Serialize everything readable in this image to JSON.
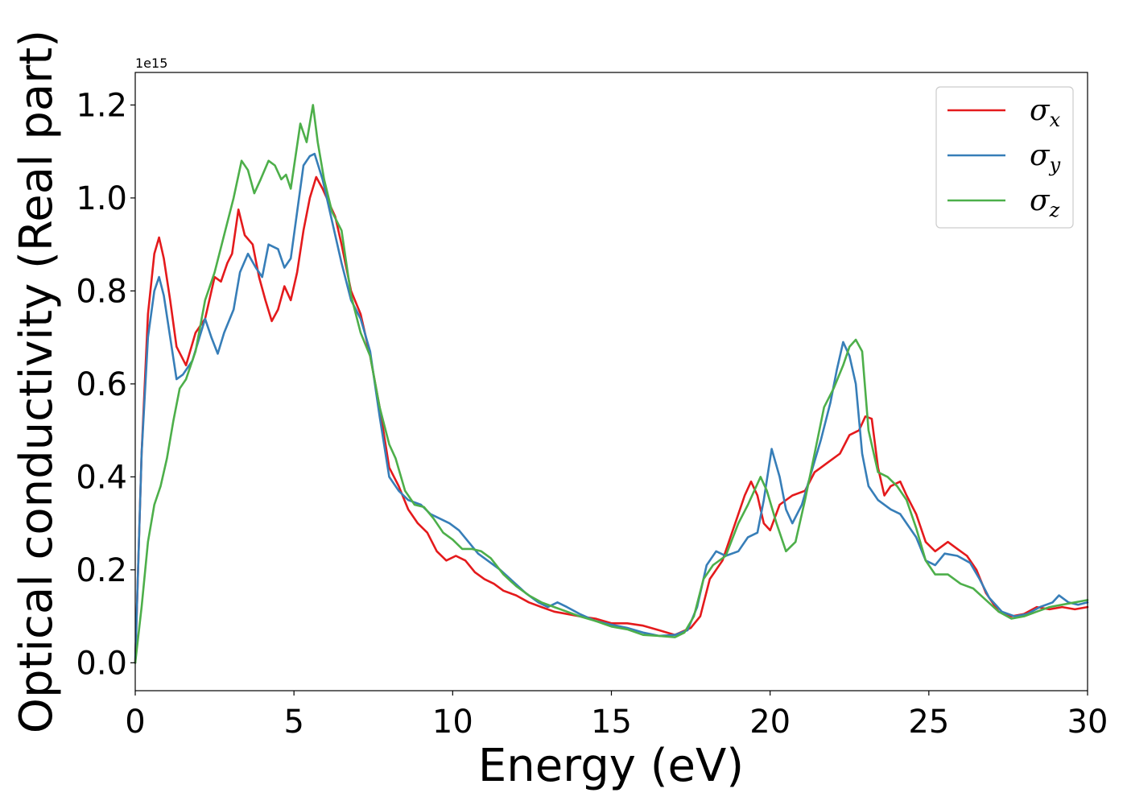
{
  "chart_data": {
    "type": "line",
    "title": "",
    "xlabel": "Energy (eV)",
    "ylabel": "Optical conductivity (Real part)",
    "y_offset_label": "1e15",
    "y_scale": 1000000000000000.0,
    "xlim": [
      0,
      30
    ],
    "ylim": [
      -0.06,
      1.27
    ],
    "xticks": [
      0,
      5,
      10,
      15,
      20,
      25,
      30
    ],
    "xtick_labels": [
      "0",
      "5",
      "10",
      "15",
      "20",
      "25",
      "30"
    ],
    "yticks": [
      0.0,
      0.2,
      0.4,
      0.6,
      0.8,
      1.0,
      1.2
    ],
    "ytick_labels": [
      "0.0",
      "0.2",
      "0.4",
      "0.6",
      "0.8",
      "1.0",
      "1.2"
    ],
    "grid": false,
    "legend_position": "top-right",
    "series": [
      {
        "name": "σ",
        "subscript": "x",
        "color": "#e41a1c",
        "points": [
          [
            0,
            0
          ],
          [
            0.2,
            0.45
          ],
          [
            0.4,
            0.75
          ],
          [
            0.6,
            0.88
          ],
          [
            0.75,
            0.915
          ],
          [
            0.9,
            0.87
          ],
          [
            1.1,
            0.78
          ],
          [
            1.3,
            0.68
          ],
          [
            1.6,
            0.64
          ],
          [
            1.9,
            0.71
          ],
          [
            2.2,
            0.74
          ],
          [
            2.5,
            0.83
          ],
          [
            2.7,
            0.82
          ],
          [
            2.9,
            0.86
          ],
          [
            3.05,
            0.88
          ],
          [
            3.25,
            0.975
          ],
          [
            3.45,
            0.92
          ],
          [
            3.7,
            0.9
          ],
          [
            3.9,
            0.83
          ],
          [
            4.1,
            0.78
          ],
          [
            4.3,
            0.735
          ],
          [
            4.5,
            0.76
          ],
          [
            4.7,
            0.81
          ],
          [
            4.9,
            0.78
          ],
          [
            5.1,
            0.84
          ],
          [
            5.3,
            0.93
          ],
          [
            5.5,
            1.0
          ],
          [
            5.7,
            1.045
          ],
          [
            5.9,
            1.02
          ],
          [
            6.1,
            0.99
          ],
          [
            6.3,
            0.96
          ],
          [
            6.5,
            0.9
          ],
          [
            6.8,
            0.8
          ],
          [
            7.1,
            0.75
          ],
          [
            7.4,
            0.66
          ],
          [
            7.7,
            0.55
          ],
          [
            8.0,
            0.42
          ],
          [
            8.3,
            0.38
          ],
          [
            8.6,
            0.33
          ],
          [
            8.9,
            0.3
          ],
          [
            9.2,
            0.28
          ],
          [
            9.5,
            0.24
          ],
          [
            9.8,
            0.22
          ],
          [
            10.1,
            0.23
          ],
          [
            10.4,
            0.22
          ],
          [
            10.7,
            0.195
          ],
          [
            11.0,
            0.18
          ],
          [
            11.3,
            0.17
          ],
          [
            11.6,
            0.155
          ],
          [
            12.0,
            0.145
          ],
          [
            12.4,
            0.13
          ],
          [
            12.8,
            0.12
          ],
          [
            13.2,
            0.11
          ],
          [
            13.6,
            0.105
          ],
          [
            14.0,
            0.1
          ],
          [
            14.5,
            0.095
          ],
          [
            15.0,
            0.085
          ],
          [
            15.5,
            0.085
          ],
          [
            16.0,
            0.08
          ],
          [
            16.5,
            0.07
          ],
          [
            17.0,
            0.06
          ],
          [
            17.5,
            0.075
          ],
          [
            17.8,
            0.1
          ],
          [
            18.1,
            0.18
          ],
          [
            18.5,
            0.22
          ],
          [
            18.9,
            0.3
          ],
          [
            19.2,
            0.36
          ],
          [
            19.4,
            0.39
          ],
          [
            19.6,
            0.36
          ],
          [
            19.8,
            0.3
          ],
          [
            20.0,
            0.285
          ],
          [
            20.3,
            0.34
          ],
          [
            20.7,
            0.36
          ],
          [
            21.1,
            0.37
          ],
          [
            21.4,
            0.41
          ],
          [
            21.8,
            0.43
          ],
          [
            22.2,
            0.45
          ],
          [
            22.5,
            0.49
          ],
          [
            22.8,
            0.5
          ],
          [
            23.0,
            0.53
          ],
          [
            23.2,
            0.525
          ],
          [
            23.4,
            0.42
          ],
          [
            23.6,
            0.36
          ],
          [
            23.8,
            0.38
          ],
          [
            24.1,
            0.39
          ],
          [
            24.3,
            0.36
          ],
          [
            24.6,
            0.32
          ],
          [
            24.9,
            0.26
          ],
          [
            25.2,
            0.24
          ],
          [
            25.6,
            0.26
          ],
          [
            25.9,
            0.245
          ],
          [
            26.2,
            0.23
          ],
          [
            26.5,
            0.2
          ],
          [
            26.8,
            0.15
          ],
          [
            27.2,
            0.11
          ],
          [
            27.6,
            0.1
          ],
          [
            28.0,
            0.105
          ],
          [
            28.4,
            0.12
          ],
          [
            28.8,
            0.115
          ],
          [
            29.2,
            0.12
          ],
          [
            29.6,
            0.115
          ],
          [
            30,
            0.12
          ]
        ]
      },
      {
        "name": "σ",
        "subscript": "y",
        "color": "#377eb8",
        "points": [
          [
            0,
            0
          ],
          [
            0.2,
            0.45
          ],
          [
            0.4,
            0.7
          ],
          [
            0.6,
            0.8
          ],
          [
            0.75,
            0.83
          ],
          [
            0.9,
            0.79
          ],
          [
            1.1,
            0.7
          ],
          [
            1.3,
            0.61
          ],
          [
            1.5,
            0.62
          ],
          [
            1.8,
            0.65
          ],
          [
            2.2,
            0.74
          ],
          [
            2.4,
            0.7
          ],
          [
            2.6,
            0.665
          ],
          [
            2.8,
            0.71
          ],
          [
            3.1,
            0.76
          ],
          [
            3.3,
            0.84
          ],
          [
            3.55,
            0.88
          ],
          [
            3.8,
            0.85
          ],
          [
            4.0,
            0.83
          ],
          [
            4.2,
            0.9
          ],
          [
            4.5,
            0.89
          ],
          [
            4.7,
            0.85
          ],
          [
            4.9,
            0.87
          ],
          [
            5.1,
            0.97
          ],
          [
            5.3,
            1.07
          ],
          [
            5.5,
            1.09
          ],
          [
            5.65,
            1.095
          ],
          [
            5.9,
            1.04
          ],
          [
            6.2,
            0.95
          ],
          [
            6.5,
            0.86
          ],
          [
            6.8,
            0.78
          ],
          [
            7.1,
            0.74
          ],
          [
            7.4,
            0.67
          ],
          [
            7.7,
            0.53
          ],
          [
            8.0,
            0.4
          ],
          [
            8.3,
            0.37
          ],
          [
            8.6,
            0.35
          ],
          [
            9.0,
            0.34
          ],
          [
            9.3,
            0.32
          ],
          [
            9.6,
            0.31
          ],
          [
            9.9,
            0.3
          ],
          [
            10.2,
            0.285
          ],
          [
            10.5,
            0.26
          ],
          [
            10.8,
            0.235
          ],
          [
            11.1,
            0.22
          ],
          [
            11.5,
            0.2
          ],
          [
            11.9,
            0.175
          ],
          [
            12.3,
            0.15
          ],
          [
            12.7,
            0.13
          ],
          [
            13.0,
            0.12
          ],
          [
            13.3,
            0.13
          ],
          [
            13.6,
            0.12
          ],
          [
            14.0,
            0.105
          ],
          [
            14.5,
            0.09
          ],
          [
            15.0,
            0.082
          ],
          [
            15.5,
            0.075
          ],
          [
            16.0,
            0.065
          ],
          [
            16.5,
            0.058
          ],
          [
            17.0,
            0.06
          ],
          [
            17.4,
            0.07
          ],
          [
            17.7,
            0.12
          ],
          [
            18.0,
            0.21
          ],
          [
            18.3,
            0.24
          ],
          [
            18.6,
            0.23
          ],
          [
            19.0,
            0.24
          ],
          [
            19.3,
            0.27
          ],
          [
            19.6,
            0.28
          ],
          [
            19.8,
            0.35
          ],
          [
            20.05,
            0.46
          ],
          [
            20.3,
            0.4
          ],
          [
            20.5,
            0.33
          ],
          [
            20.7,
            0.3
          ],
          [
            21.0,
            0.34
          ],
          [
            21.3,
            0.41
          ],
          [
            21.6,
            0.48
          ],
          [
            21.9,
            0.56
          ],
          [
            22.1,
            0.63
          ],
          [
            22.3,
            0.69
          ],
          [
            22.5,
            0.66
          ],
          [
            22.7,
            0.6
          ],
          [
            22.9,
            0.45
          ],
          [
            23.1,
            0.38
          ],
          [
            23.4,
            0.35
          ],
          [
            23.8,
            0.33
          ],
          [
            24.1,
            0.32
          ],
          [
            24.3,
            0.3
          ],
          [
            24.6,
            0.27
          ],
          [
            24.9,
            0.22
          ],
          [
            25.2,
            0.21
          ],
          [
            25.5,
            0.235
          ],
          [
            25.9,
            0.23
          ],
          [
            26.3,
            0.215
          ],
          [
            26.6,
            0.18
          ],
          [
            26.9,
            0.14
          ],
          [
            27.3,
            0.11
          ],
          [
            27.7,
            0.1
          ],
          [
            28.1,
            0.105
          ],
          [
            28.5,
            0.12
          ],
          [
            28.9,
            0.13
          ],
          [
            29.1,
            0.145
          ],
          [
            29.4,
            0.13
          ],
          [
            29.7,
            0.125
          ],
          [
            30,
            0.13
          ]
        ]
      },
      {
        "name": "σ",
        "subscript": "z",
        "color": "#4daf4a",
        "points": [
          [
            0,
            0
          ],
          [
            0.2,
            0.12
          ],
          [
            0.4,
            0.26
          ],
          [
            0.6,
            0.34
          ],
          [
            0.8,
            0.38
          ],
          [
            1.0,
            0.44
          ],
          [
            1.2,
            0.52
          ],
          [
            1.4,
            0.59
          ],
          [
            1.6,
            0.61
          ],
          [
            1.9,
            0.67
          ],
          [
            2.2,
            0.78
          ],
          [
            2.5,
            0.84
          ],
          [
            2.8,
            0.92
          ],
          [
            3.1,
            1.0
          ],
          [
            3.35,
            1.08
          ],
          [
            3.55,
            1.06
          ],
          [
            3.75,
            1.01
          ],
          [
            3.95,
            1.04
          ],
          [
            4.2,
            1.08
          ],
          [
            4.4,
            1.07
          ],
          [
            4.6,
            1.04
          ],
          [
            4.75,
            1.05
          ],
          [
            4.9,
            1.02
          ],
          [
            5.2,
            1.16
          ],
          [
            5.4,
            1.12
          ],
          [
            5.6,
            1.2
          ],
          [
            5.75,
            1.12
          ],
          [
            5.95,
            1.04
          ],
          [
            6.2,
            0.97
          ],
          [
            6.5,
            0.93
          ],
          [
            6.8,
            0.79
          ],
          [
            7.1,
            0.71
          ],
          [
            7.4,
            0.66
          ],
          [
            7.7,
            0.55
          ],
          [
            8.0,
            0.47
          ],
          [
            8.2,
            0.44
          ],
          [
            8.5,
            0.37
          ],
          [
            8.8,
            0.34
          ],
          [
            9.1,
            0.335
          ],
          [
            9.4,
            0.31
          ],
          [
            9.7,
            0.28
          ],
          [
            10.0,
            0.265
          ],
          [
            10.3,
            0.245
          ],
          [
            10.6,
            0.245
          ],
          [
            10.9,
            0.24
          ],
          [
            11.2,
            0.225
          ],
          [
            11.6,
            0.19
          ],
          [
            12.0,
            0.165
          ],
          [
            12.4,
            0.145
          ],
          [
            12.8,
            0.13
          ],
          [
            13.2,
            0.12
          ],
          [
            13.6,
            0.11
          ],
          [
            14.0,
            0.1
          ],
          [
            14.5,
            0.09
          ],
          [
            15.0,
            0.078
          ],
          [
            15.5,
            0.072
          ],
          [
            16.0,
            0.06
          ],
          [
            16.5,
            0.058
          ],
          [
            17.0,
            0.055
          ],
          [
            17.3,
            0.065
          ],
          [
            17.6,
            0.1
          ],
          [
            17.9,
            0.18
          ],
          [
            18.2,
            0.21
          ],
          [
            18.6,
            0.23
          ],
          [
            19.0,
            0.3
          ],
          [
            19.3,
            0.34
          ],
          [
            19.7,
            0.4
          ],
          [
            19.9,
            0.37
          ],
          [
            20.2,
            0.3
          ],
          [
            20.5,
            0.24
          ],
          [
            20.8,
            0.26
          ],
          [
            21.1,
            0.35
          ],
          [
            21.4,
            0.45
          ],
          [
            21.7,
            0.55
          ],
          [
            22.0,
            0.59
          ],
          [
            22.3,
            0.64
          ],
          [
            22.5,
            0.68
          ],
          [
            22.7,
            0.695
          ],
          [
            22.9,
            0.67
          ],
          [
            23.1,
            0.5
          ],
          [
            23.4,
            0.41
          ],
          [
            23.7,
            0.4
          ],
          [
            24.0,
            0.38
          ],
          [
            24.3,
            0.35
          ],
          [
            24.6,
            0.29
          ],
          [
            24.9,
            0.22
          ],
          [
            25.2,
            0.19
          ],
          [
            25.6,
            0.19
          ],
          [
            26.0,
            0.17
          ],
          [
            26.4,
            0.16
          ],
          [
            26.8,
            0.135
          ],
          [
            27.2,
            0.11
          ],
          [
            27.6,
            0.095
          ],
          [
            28.0,
            0.1
          ],
          [
            28.4,
            0.11
          ],
          [
            28.8,
            0.12
          ],
          [
            29.2,
            0.125
          ],
          [
            29.6,
            0.13
          ],
          [
            30,
            0.135
          ]
        ]
      }
    ]
  }
}
